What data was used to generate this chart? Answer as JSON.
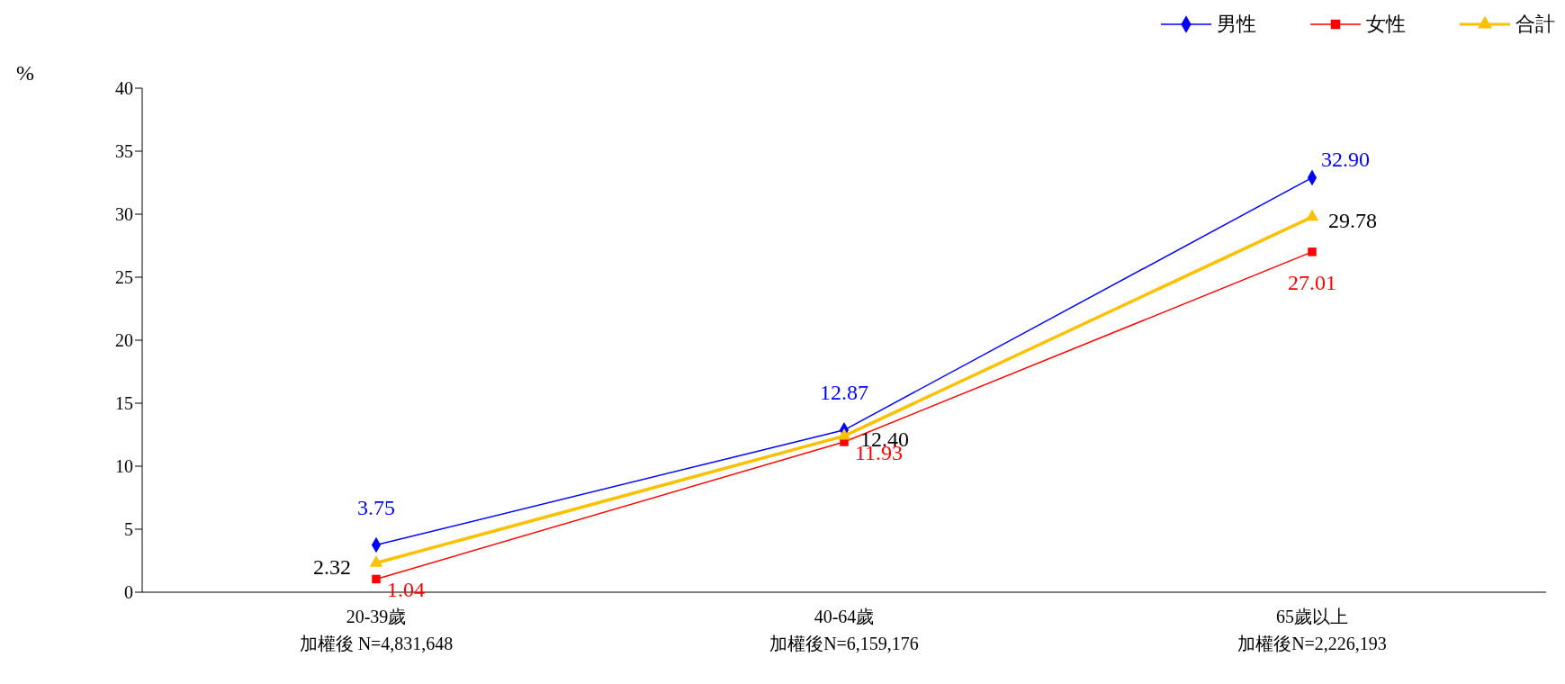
{
  "chart_data": {
    "type": "line",
    "ylabel": "%",
    "categories": [
      "20-39歲加權後 N=4,831,648",
      "40-64歲加權後N=6,159,176",
      "65歲以上加權後N=2,226,193"
    ],
    "series": [
      {
        "name": "男性",
        "color": "#0000ff",
        "marker": "diamond",
        "values": [
          3.75,
          12.87,
          32.9
        ],
        "value_labels": [
          "3.75",
          "12.87",
          "32.90"
        ]
      },
      {
        "name": "女性",
        "color": "#ff0000",
        "marker": "square",
        "values": [
          1.04,
          11.93,
          27.01
        ],
        "value_labels": [
          "1.04",
          "11.93",
          "27.01"
        ]
      },
      {
        "name": "合計",
        "color": "#ffc000",
        "marker": "triangle",
        "values": [
          2.32,
          12.4,
          29.78
        ],
        "value_labels": [
          "2.32",
          "12.40",
          "29.78"
        ]
      }
    ],
    "ylim": [
      0,
      40
    ],
    "yticks": [
      0,
      5,
      10,
      15,
      20,
      25,
      30,
      35,
      40
    ],
    "grid": false,
    "legend": "top right"
  }
}
